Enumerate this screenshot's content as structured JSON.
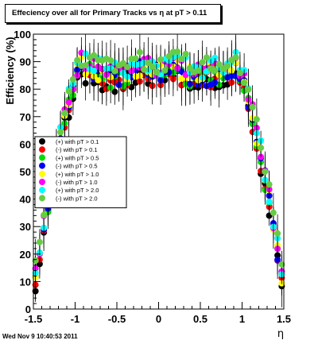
{
  "chart_data": {
    "type": "scatter",
    "title": "Effeciency over all for Primary Tracks vs η at pT > 0.11",
    "xlabel": "η",
    "ylabel": "Efficiency (%)",
    "xlim": [
      -1.5,
      1.5
    ],
    "ylim": [
      0,
      100
    ],
    "x_ticks": [
      "-1.5",
      "-1",
      "-0.5",
      "0",
      "0.5",
      "1",
      "1.5"
    ],
    "y_ticks": [
      "0",
      "10",
      "20",
      "30",
      "40",
      "50",
      "60",
      "70",
      "80",
      "90",
      "100"
    ],
    "grid": false,
    "legend_position": "left-center",
    "series": [
      {
        "name": "(+) with pT > 0.1",
        "color": "#000000"
      },
      {
        "name": "(-) with pT > 0.1",
        "color": "#ff0000"
      },
      {
        "name": "(+) with pT > 0.5",
        "color": "#00dd00"
      },
      {
        "name": "(-) with pT > 0.5",
        "color": "#0000ff"
      },
      {
        "name": "(+) with pT > 1.0",
        "color": "#ffff00"
      },
      {
        "name": "(-) with pT > 1.0",
        "color": "#ff00ff"
      },
      {
        "name": "(+) with pT > 2.0",
        "color": "#00ffff"
      },
      {
        "name": "(-) with pT > 2.0",
        "color": "#66cc44"
      }
    ]
  },
  "footer": "Wed Nov  9 10:40:53 2011"
}
